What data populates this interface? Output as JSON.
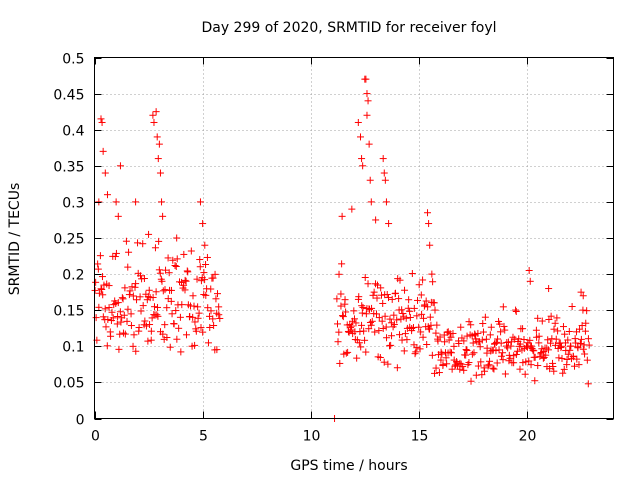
{
  "chart_data": {
    "type": "scatter",
    "title": "Day 299 of 2020, SRMTID for receiver foyl",
    "xlabel": "GPS time / hours",
    "ylabel": "SRMTID / TECUs",
    "xlim": [
      0,
      24
    ],
    "ylim": [
      0,
      0.5
    ],
    "x_ticks": [
      0,
      5,
      10,
      15,
      20
    ],
    "y_ticks": [
      0,
      0.05,
      0.1,
      0.15,
      0.2,
      0.25,
      0.3,
      0.35,
      0.4,
      0.45,
      0.5
    ],
    "grid": true,
    "legend": "none",
    "colors": {
      "series": "#ff0000",
      "grid": "#a0a0a0",
      "axis": "#000000"
    },
    "marker": "plus",
    "series": [
      {
        "segments": [
          {
            "x_start": 0.0,
            "x_end": 5.8,
            "step": 0.03,
            "base": 0.16,
            "spread": 0.07
          },
          {
            "x_start": 11.2,
            "x_end": 15.8,
            "step": 0.03,
            "base": 0.14,
            "spread": 0.06
          },
          {
            "x_start": 15.8,
            "x_end": 22.9,
            "step": 0.03,
            "base": 0.1,
            "spread": 0.04
          }
        ],
        "peaks": [
          {
            "x": 0.3,
            "y": 0.415
          },
          {
            "x": 0.35,
            "y": 0.41
          },
          {
            "x": 0.4,
            "y": 0.37
          },
          {
            "x": 0.5,
            "y": 0.34
          },
          {
            "x": 0.6,
            "y": 0.31
          },
          {
            "x": 0.2,
            "y": 0.3
          },
          {
            "x": 1.0,
            "y": 0.3
          },
          {
            "x": 1.1,
            "y": 0.28
          },
          {
            "x": 1.2,
            "y": 0.35
          },
          {
            "x": 1.9,
            "y": 0.3
          },
          {
            "x": 2.5,
            "y": 0.255
          },
          {
            "x": 2.7,
            "y": 0.42
          },
          {
            "x": 2.75,
            "y": 0.41
          },
          {
            "x": 2.85,
            "y": 0.425
          },
          {
            "x": 2.9,
            "y": 0.39
          },
          {
            "x": 3.0,
            "y": 0.38
          },
          {
            "x": 2.95,
            "y": 0.36
          },
          {
            "x": 3.05,
            "y": 0.34
          },
          {
            "x": 3.1,
            "y": 0.3
          },
          {
            "x": 3.15,
            "y": 0.28
          },
          {
            "x": 3.8,
            "y": 0.25
          },
          {
            "x": 4.9,
            "y": 0.3
          },
          {
            "x": 5.0,
            "y": 0.27
          },
          {
            "x": 5.1,
            "y": 0.24
          },
          {
            "x": 11.1,
            "y": 0.0
          },
          {
            "x": 11.45,
            "y": 0.28
          },
          {
            "x": 11.9,
            "y": 0.29
          },
          {
            "x": 12.2,
            "y": 0.41
          },
          {
            "x": 12.3,
            "y": 0.39
          },
          {
            "x": 12.35,
            "y": 0.36
          },
          {
            "x": 12.4,
            "y": 0.35
          },
          {
            "x": 12.5,
            "y": 0.47
          },
          {
            "x": 12.55,
            "y": 0.47
          },
          {
            "x": 12.6,
            "y": 0.45
          },
          {
            "x": 12.65,
            "y": 0.44
          },
          {
            "x": 12.6,
            "y": 0.42
          },
          {
            "x": 12.7,
            "y": 0.38
          },
          {
            "x": 12.75,
            "y": 0.33
          },
          {
            "x": 12.8,
            "y": 0.3
          },
          {
            "x": 13.0,
            "y": 0.275
          },
          {
            "x": 13.35,
            "y": 0.36
          },
          {
            "x": 13.4,
            "y": 0.34
          },
          {
            "x": 13.45,
            "y": 0.33
          },
          {
            "x": 13.5,
            "y": 0.3
          },
          {
            "x": 13.6,
            "y": 0.27
          },
          {
            "x": 15.4,
            "y": 0.285
          },
          {
            "x": 15.45,
            "y": 0.27
          },
          {
            "x": 15.5,
            "y": 0.24
          },
          {
            "x": 15.6,
            "y": 0.2
          },
          {
            "x": 20.1,
            "y": 0.205
          },
          {
            "x": 20.15,
            "y": 0.19
          },
          {
            "x": 21.0,
            "y": 0.18
          },
          {
            "x": 22.5,
            "y": 0.175
          },
          {
            "x": 22.6,
            "y": 0.17
          }
        ]
      }
    ]
  }
}
